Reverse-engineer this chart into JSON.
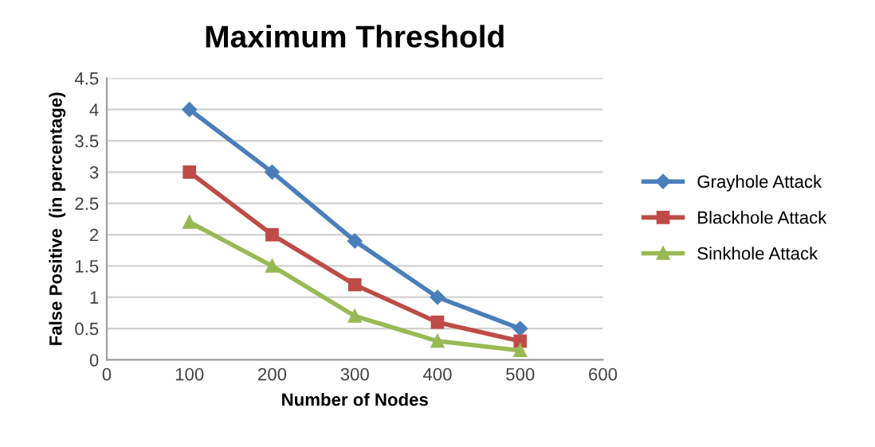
{
  "chart_data": {
    "type": "line",
    "title": "Maximum Threshold",
    "xlabel": "Number of Nodes",
    "ylabel": "False Positive  (in percentage)",
    "x": [
      100,
      200,
      300,
      400,
      500
    ],
    "series": [
      {
        "name": "Grayhole Attack",
        "color": "#4a7ebb",
        "marker": "diamond",
        "values": [
          4,
          3,
          1.9,
          1,
          0.5
        ]
      },
      {
        "name": "Blackhole Attack",
        "color": "#be4b48",
        "marker": "square",
        "values": [
          3,
          2,
          1.2,
          0.6,
          0.3
        ]
      },
      {
        "name": "Sinkhole Attack",
        "color": "#98b954",
        "marker": "triangle",
        "values": [
          2.2,
          1.5,
          0.7,
          0.3,
          0.15
        ]
      }
    ],
    "xlim": [
      0,
      600
    ],
    "xticks": [
      0,
      100,
      200,
      300,
      400,
      500,
      600
    ],
    "ylim": [
      0,
      4.5
    ],
    "yticks": [
      0,
      0.5,
      1,
      1.5,
      2,
      2.5,
      3,
      3.5,
      4,
      4.5
    ],
    "grid": "y",
    "legend": "right",
    "line_style": "solid"
  }
}
